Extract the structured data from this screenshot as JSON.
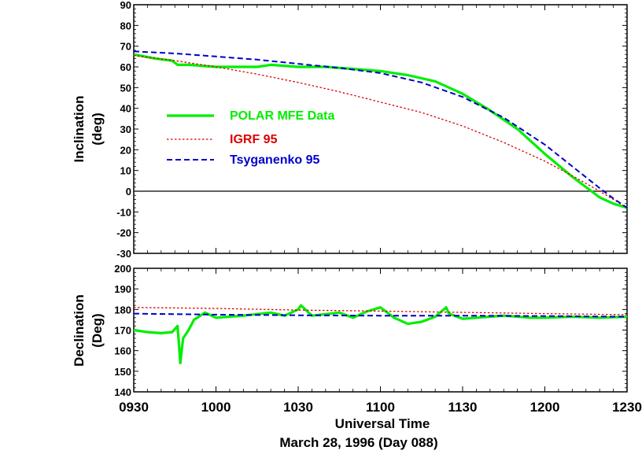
{
  "chart_data": [
    {
      "type": "line",
      "panel": "inclination",
      "ylabel_line1": "Inclination",
      "ylabel_line2": "(deg)",
      "ylim": [
        -30,
        90
      ],
      "yticks": [
        "90",
        "80",
        "70",
        "60",
        "50",
        "40",
        "30",
        "20",
        "10",
        "0",
        "-10",
        "-20",
        "-30"
      ],
      "xlim": [
        930,
        1230
      ],
      "zero_line": true,
      "legend_placement": "left",
      "series": [
        {
          "name": "POLAR MFE Data",
          "color": "#00ee00",
          "style": "solid-thick",
          "x": [
            "09:30",
            "09:38",
            "09:44",
            "09:46",
            "09:50",
            "10:00",
            "10:15",
            "10:20",
            "10:30",
            "10:40",
            "10:50",
            "11:00",
            "11:10",
            "11:20",
            "11:30",
            "11:40",
            "11:50",
            "12:00",
            "12:10",
            "12:20",
            "12:25",
            "12:30"
          ],
          "y": [
            66,
            64,
            63,
            61,
            61,
            60,
            60,
            61,
            60,
            60,
            59,
            58,
            56,
            53,
            47,
            39,
            30,
            18,
            7,
            -3,
            -6,
            -8
          ]
        },
        {
          "name": "IGRF 95",
          "color": "#dd0000",
          "style": "dotted",
          "x": [
            "09:30",
            "09:45",
            "10:00",
            "10:15",
            "10:30",
            "10:45",
            "11:00",
            "11:15",
            "11:30",
            "11:45",
            "12:00",
            "12:10",
            "12:20",
            "12:25",
            "12:30"
          ],
          "y": [
            65.5,
            63,
            60,
            56.5,
            52.5,
            48,
            43,
            38,
            31.5,
            23.5,
            14.5,
            7.5,
            0,
            -4,
            -8
          ]
        },
        {
          "name": "Tsyganenko 95",
          "color": "#0000cc",
          "style": "dashed",
          "x": [
            "09:30",
            "09:45",
            "10:00",
            "10:15",
            "10:30",
            "10:45",
            "11:00",
            "11:15",
            "11:30",
            "11:45",
            "12:00",
            "12:10",
            "12:20",
            "12:25",
            "12:30"
          ],
          "y": [
            67.5,
            66.5,
            65,
            63.5,
            61.5,
            59.5,
            57,
            52.5,
            45.5,
            35.5,
            22.5,
            12,
            1.5,
            -3.5,
            -8
          ]
        }
      ]
    },
    {
      "type": "line",
      "panel": "declination",
      "ylabel_line1": "Declination",
      "ylabel_line2": "(Deg)",
      "ylim": [
        140,
        200
      ],
      "yticks": [
        "200",
        "190",
        "180",
        "170",
        "160",
        "150",
        "140"
      ],
      "xlim": [
        930,
        1230
      ],
      "xticks": [
        "0930",
        "1000",
        "1030",
        "1100",
        "1130",
        "1200",
        "1230"
      ],
      "xlabel": "Universal Time",
      "date_label": "March 28, 1996 (Day 088)",
      "series": [
        {
          "name": "POLAR MFE Data",
          "color": "#00ee00",
          "style": "solid-thick",
          "x": [
            "09:30",
            "09:35",
            "09:40",
            "09:44",
            "09:46",
            "09:47",
            "09:48",
            "09:50",
            "09:52",
            "09:56",
            "10:00",
            "10:10",
            "10:20",
            "10:25",
            "10:30",
            "10:31",
            "10:35",
            "10:45",
            "10:50",
            "10:55",
            "11:00",
            "11:05",
            "11:10",
            "11:15",
            "11:20",
            "11:24",
            "11:25",
            "11:30",
            "11:35",
            "11:45",
            "11:55",
            "12:00",
            "12:10",
            "12:20",
            "12:30"
          ],
          "y": [
            170,
            169,
            168.5,
            169,
            172,
            154,
            166,
            170,
            175,
            178.5,
            176,
            177,
            178.5,
            177,
            180,
            182,
            177,
            178.5,
            176,
            179,
            181,
            176,
            173,
            174,
            176.5,
            181,
            178,
            175.5,
            176,
            177,
            176,
            176,
            176.5,
            176,
            176.5
          ]
        },
        {
          "name": "IGRF 95",
          "color": "#dd0000",
          "style": "dotted",
          "x": [
            "09:30",
            "10:00",
            "10:30",
            "11:00",
            "11:30",
            "12:00",
            "12:30"
          ],
          "y": [
            181,
            180.5,
            179.7,
            179.2,
            178.6,
            178,
            177.5
          ]
        },
        {
          "name": "Tsyganenko 95",
          "color": "#0000cc",
          "style": "dashed",
          "x": [
            "09:30",
            "10:00",
            "10:30",
            "11:00",
            "11:30",
            "12:00",
            "12:30"
          ],
          "y": [
            178,
            177.5,
            177.2,
            177,
            177,
            176.8,
            176.5
          ]
        }
      ]
    }
  ]
}
